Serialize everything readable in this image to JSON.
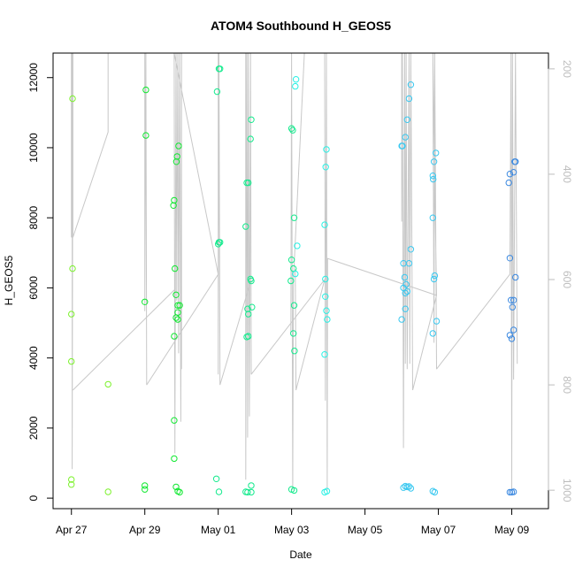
{
  "chart_data": {
    "type": "scatter",
    "title": "ATOM4 Southbound H_GEOS5",
    "xlabel": "Date",
    "ylabel": "H_GEOS5",
    "x_ticks": [
      {
        "label": "Apr 27",
        "day": 0
      },
      {
        "label": "Apr 29",
        "day": 2
      },
      {
        "label": "May 01",
        "day": 4
      },
      {
        "label": "May 03",
        "day": 6
      },
      {
        "label": "May 05",
        "day": 8
      },
      {
        "label": "May 07",
        "day": 10
      },
      {
        "label": "May 09",
        "day": 12
      }
    ],
    "xlim": [
      -0.5,
      13.0
    ],
    "ylim": [
      -300,
      12700
    ],
    "y_ticks": [
      0,
      2000,
      4000,
      6000,
      8000,
      10000,
      12000
    ],
    "right_axis": {
      "ylim_pressure": [
        170,
        1035
      ],
      "ticks": [
        200,
        400,
        600,
        800,
        1000
      ],
      "color": "#bdbdbd"
    },
    "grid": false,
    "points": [
      {
        "x": 0.03,
        "y": 11400
      },
      {
        "x": 0.03,
        "y": 6550
      },
      {
        "x": 0.0,
        "y": 5250
      },
      {
        "x": 0.0,
        "y": 3900
      },
      {
        "x": 0.0,
        "y": 530
      },
      {
        "x": 0.0,
        "y": 390
      },
      {
        "x": 1.0,
        "y": 3250
      },
      {
        "x": 1.0,
        "y": 180
      },
      {
        "x": 2.03,
        "y": 11650
      },
      {
        "x": 2.03,
        "y": 10350
      },
      {
        "x": 2.0,
        "y": 5600
      },
      {
        "x": 2.0,
        "y": 360
      },
      {
        "x": 2.0,
        "y": 250
      },
      {
        "x": 2.8,
        "y": 8500
      },
      {
        "x": 2.78,
        "y": 8350
      },
      {
        "x": 2.82,
        "y": 6550
      },
      {
        "x": 2.8,
        "y": 4620
      },
      {
        "x": 2.8,
        "y": 2220
      },
      {
        "x": 2.8,
        "y": 1130
      },
      {
        "x": 2.85,
        "y": 320
      },
      {
        "x": 2.88,
        "y": 9750
      },
      {
        "x": 2.86,
        "y": 9600
      },
      {
        "x": 2.92,
        "y": 10050
      },
      {
        "x": 2.85,
        "y": 5800
      },
      {
        "x": 2.9,
        "y": 5500
      },
      {
        "x": 2.95,
        "y": 5500
      },
      {
        "x": 2.9,
        "y": 5300
      },
      {
        "x": 2.85,
        "y": 5150
      },
      {
        "x": 2.9,
        "y": 5100
      },
      {
        "x": 2.9,
        "y": 200
      },
      {
        "x": 2.95,
        "y": 170
      },
      {
        "x": 4.02,
        "y": 12250
      },
      {
        "x": 4.05,
        "y": 12250
      },
      {
        "x": 3.97,
        "y": 11600
      },
      {
        "x": 4.02,
        "y": 7300
      },
      {
        "x": 4.0,
        "y": 7250
      },
      {
        "x": 4.05,
        "y": 7300
      },
      {
        "x": 3.95,
        "y": 550
      },
      {
        "x": 4.02,
        "y": 180
      },
      {
        "x": 4.78,
        "y": 9000
      },
      {
        "x": 4.82,
        "y": 9000
      },
      {
        "x": 4.75,
        "y": 7750
      },
      {
        "x": 4.8,
        "y": 5400
      },
      {
        "x": 4.82,
        "y": 5250
      },
      {
        "x": 4.78,
        "y": 4600
      },
      {
        "x": 4.82,
        "y": 4620
      },
      {
        "x": 4.75,
        "y": 180
      },
      {
        "x": 4.8,
        "y": 170
      },
      {
        "x": 4.9,
        "y": 10800
      },
      {
        "x": 4.88,
        "y": 10250
      },
      {
        "x": 4.88,
        "y": 6250
      },
      {
        "x": 4.9,
        "y": 6200
      },
      {
        "x": 4.92,
        "y": 5450
      },
      {
        "x": 4.9,
        "y": 360
      },
      {
        "x": 4.9,
        "y": 170
      },
      {
        "x": 6.0,
        "y": 10550
      },
      {
        "x": 6.03,
        "y": 10500
      },
      {
        "x": 6.12,
        "y": 11950
      },
      {
        "x": 6.1,
        "y": 11750
      },
      {
        "x": 6.07,
        "y": 8000
      },
      {
        "x": 6.15,
        "y": 7200
      },
      {
        "x": 6.0,
        "y": 6800
      },
      {
        "x": 6.05,
        "y": 6550
      },
      {
        "x": 6.1,
        "y": 6400
      },
      {
        "x": 5.98,
        "y": 6200
      },
      {
        "x": 6.07,
        "y": 5500
      },
      {
        "x": 6.05,
        "y": 4700
      },
      {
        "x": 6.08,
        "y": 4200
      },
      {
        "x": 6.0,
        "y": 250
      },
      {
        "x": 6.07,
        "y": 220
      },
      {
        "x": 6.95,
        "y": 9950
      },
      {
        "x": 6.93,
        "y": 9450
      },
      {
        "x": 6.9,
        "y": 7800
      },
      {
        "x": 6.92,
        "y": 6250
      },
      {
        "x": 6.92,
        "y": 5750
      },
      {
        "x": 6.95,
        "y": 5350
      },
      {
        "x": 6.97,
        "y": 5100
      },
      {
        "x": 6.9,
        "y": 4100
      },
      {
        "x": 6.9,
        "y": 170
      },
      {
        "x": 6.96,
        "y": 200
      },
      {
        "x": 9.0,
        "y": 10050
      },
      {
        "x": 9.02,
        "y": 10050
      },
      {
        "x": 9.1,
        "y": 10300
      },
      {
        "x": 9.15,
        "y": 10800
      },
      {
        "x": 9.2,
        "y": 11400
      },
      {
        "x": 9.25,
        "y": 11800
      },
      {
        "x": 9.05,
        "y": 6700
      },
      {
        "x": 9.2,
        "y": 6700
      },
      {
        "x": 9.25,
        "y": 7100
      },
      {
        "x": 9.08,
        "y": 6300
      },
      {
        "x": 9.12,
        "y": 6100
      },
      {
        "x": 9.1,
        "y": 5850
      },
      {
        "x": 9.05,
        "y": 6000
      },
      {
        "x": 9.15,
        "y": 5900
      },
      {
        "x": 9.1,
        "y": 5400
      },
      {
        "x": 9.0,
        "y": 5100
      },
      {
        "x": 9.05,
        "y": 300
      },
      {
        "x": 9.1,
        "y": 340
      },
      {
        "x": 9.15,
        "y": 320
      },
      {
        "x": 9.2,
        "y": 330
      },
      {
        "x": 9.25,
        "y": 280
      },
      {
        "x": 9.88,
        "y": 9600
      },
      {
        "x": 9.93,
        "y": 9850
      },
      {
        "x": 9.85,
        "y": 9200
      },
      {
        "x": 9.86,
        "y": 9100
      },
      {
        "x": 9.85,
        "y": 8000
      },
      {
        "x": 9.9,
        "y": 6350
      },
      {
        "x": 9.88,
        "y": 6250
      },
      {
        "x": 9.95,
        "y": 5050
      },
      {
        "x": 9.85,
        "y": 4700
      },
      {
        "x": 9.85,
        "y": 200
      },
      {
        "x": 9.9,
        "y": 170
      },
      {
        "x": 11.95,
        "y": 6850
      },
      {
        "x": 11.92,
        "y": 9000
      },
      {
        "x": 11.95,
        "y": 9250
      },
      {
        "x": 12.05,
        "y": 9300
      },
      {
        "x": 12.08,
        "y": 9600
      },
      {
        "x": 12.1,
        "y": 9600
      },
      {
        "x": 12.1,
        "y": 6300
      },
      {
        "x": 11.98,
        "y": 5650
      },
      {
        "x": 12.05,
        "y": 5650
      },
      {
        "x": 12.02,
        "y": 5450
      },
      {
        "x": 12.05,
        "y": 4800
      },
      {
        "x": 11.95,
        "y": 4650
      },
      {
        "x": 12.0,
        "y": 4550
      },
      {
        "x": 11.95,
        "y": 170
      },
      {
        "x": 12.0,
        "y": 170
      },
      {
        "x": 12.05,
        "y": 180
      }
    ],
    "flight_tracks": [
      [
        [
          0.0,
          170
        ],
        [
          0.0,
          520
        ],
        [
          0.02,
          170
        ],
        [
          0.02,
          960
        ],
        [
          0.04,
          170
        ],
        [
          0.04,
          520
        ],
        [
          1.0,
          320
        ],
        [
          1.0,
          170
        ]
      ],
      [
        [
          0.04,
          810
        ],
        [
          2.8,
          620
        ]
      ],
      [
        [
          2.0,
          170
        ],
        [
          2.0,
          660
        ],
        [
          2.03,
          170
        ],
        [
          2.05,
          800
        ]
      ],
      [
        [
          2.05,
          800
        ],
        [
          4.0,
          590
        ],
        [
          2.8,
          170
        ],
        [
          2.82,
          930
        ],
        [
          2.85,
          170
        ],
        [
          2.87,
          640
        ],
        [
          2.9,
          170
        ],
        [
          2.92,
          740
        ],
        [
          2.95,
          170
        ],
        [
          2.98,
          870
        ],
        [
          3.0,
          170
        ],
        [
          3.0,
          770
        ]
      ],
      [
        [
          4.0,
          170
        ],
        [
          4.0,
          780
        ],
        [
          4.02,
          170
        ],
        [
          4.05,
          800
        ],
        [
          4.05,
          800
        ],
        [
          4.9,
          600
        ]
      ],
      [
        [
          4.75,
          170
        ],
        [
          4.75,
          980
        ],
        [
          4.78,
          170
        ],
        [
          4.8,
          900
        ],
        [
          4.82,
          170
        ],
        [
          4.85,
          860
        ],
        [
          4.88,
          170
        ],
        [
          4.9,
          780
        ]
      ],
      [
        [
          4.9,
          780
        ],
        [
          6.9,
          600
        ]
      ],
      [
        [
          5.98,
          700
        ],
        [
          6.0,
          170
        ],
        [
          6.03,
          1000
        ],
        [
          6.05,
          600
        ],
        [
          6.35,
          170
        ]
      ],
      [
        [
          6.1,
          580
        ],
        [
          6.12,
          810
        ],
        [
          6.9,
          600
        ]
      ],
      [
        [
          6.9,
          170
        ],
        [
          6.92,
          830
        ],
        [
          6.95,
          170
        ],
        [
          6.97,
          1000
        ],
        [
          6.98,
          560
        ],
        [
          9.95,
          630
        ]
      ],
      [
        [
          9.0,
          170
        ],
        [
          9.0,
          490
        ],
        [
          9.02,
          170
        ],
        [
          9.05,
          920
        ],
        [
          9.08,
          170
        ],
        [
          9.1,
          760
        ],
        [
          9.12,
          170
        ],
        [
          9.15,
          770
        ],
        [
          9.2,
          170
        ],
        [
          9.22,
          760
        ],
        [
          9.25,
          170
        ],
        [
          9.3,
          810
        ]
      ],
      [
        [
          9.3,
          810
        ],
        [
          9.95,
          630
        ],
        [
          9.85,
          170
        ],
        [
          9.88,
          720
        ],
        [
          9.9,
          170
        ],
        [
          9.95,
          770
        ]
      ],
      [
        [
          9.95,
          770
        ],
        [
          11.95,
          590
        ],
        [
          11.98,
          170
        ],
        [
          12.0,
          1000
        ],
        [
          12.02,
          170
        ],
        [
          12.05,
          790
        ],
        [
          12.1,
          170
        ],
        [
          12.15,
          760
        ]
      ]
    ],
    "colors": {
      "track": "#c8c8c8",
      "point_gradient": [
        "#7cf22c",
        "#10e830",
        "#14ea8d",
        "#28f0e4",
        "#3ac8f0",
        "#3a88e0"
      ]
    }
  }
}
